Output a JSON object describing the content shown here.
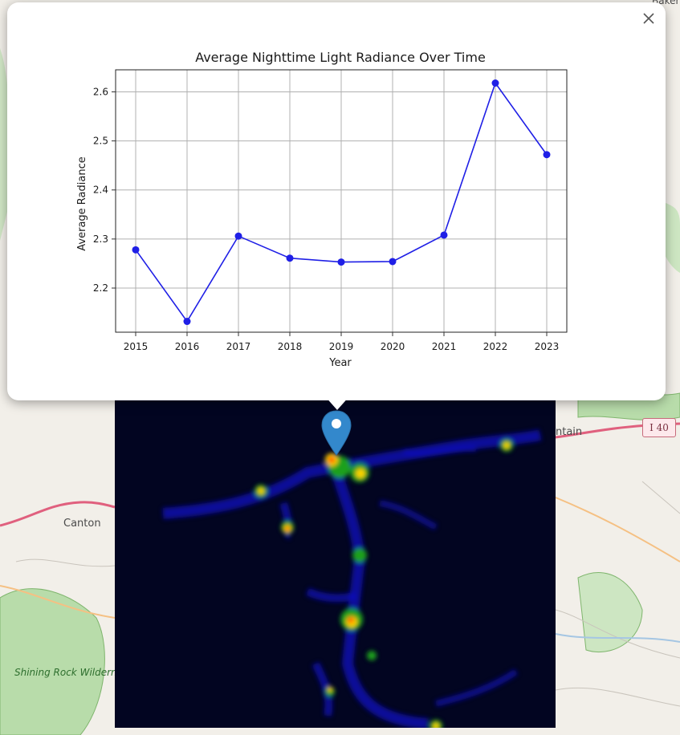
{
  "map": {
    "labels": {
      "canton": "Canton",
      "shining_rock": "Shining Rock Wilderness",
      "mountain": "ntain",
      "baker": "Baker",
      "interstate": "I 40"
    }
  },
  "popup": {
    "close_icon": "close-icon"
  },
  "colors": {
    "line": "#1f1fe6",
    "grid": "#b0b0b0",
    "popup_bg": "#ffffff",
    "overlay_bg": "#020521",
    "marker": "#3388cc"
  },
  "chart_data": {
    "type": "line",
    "title": "Average Nighttime Light Radiance Over Time",
    "xlabel": "Year",
    "ylabel": "Average Radiance",
    "x": [
      "2015",
      "2016",
      "2017",
      "2018",
      "2019",
      "2020",
      "2021",
      "2022",
      "2023"
    ],
    "series": [
      {
        "values": [
          2.278,
          2.132,
          2.306,
          2.261,
          2.253,
          2.254,
          2.308,
          2.618,
          2.472
        ],
        "color": "#1f1fe6",
        "marker": "circle"
      }
    ],
    "ylim": [
      2.11,
      2.645
    ],
    "yticks": [
      "2.2",
      "2.3",
      "2.4",
      "2.5",
      "2.6"
    ],
    "grid": true,
    "legend": "none"
  }
}
